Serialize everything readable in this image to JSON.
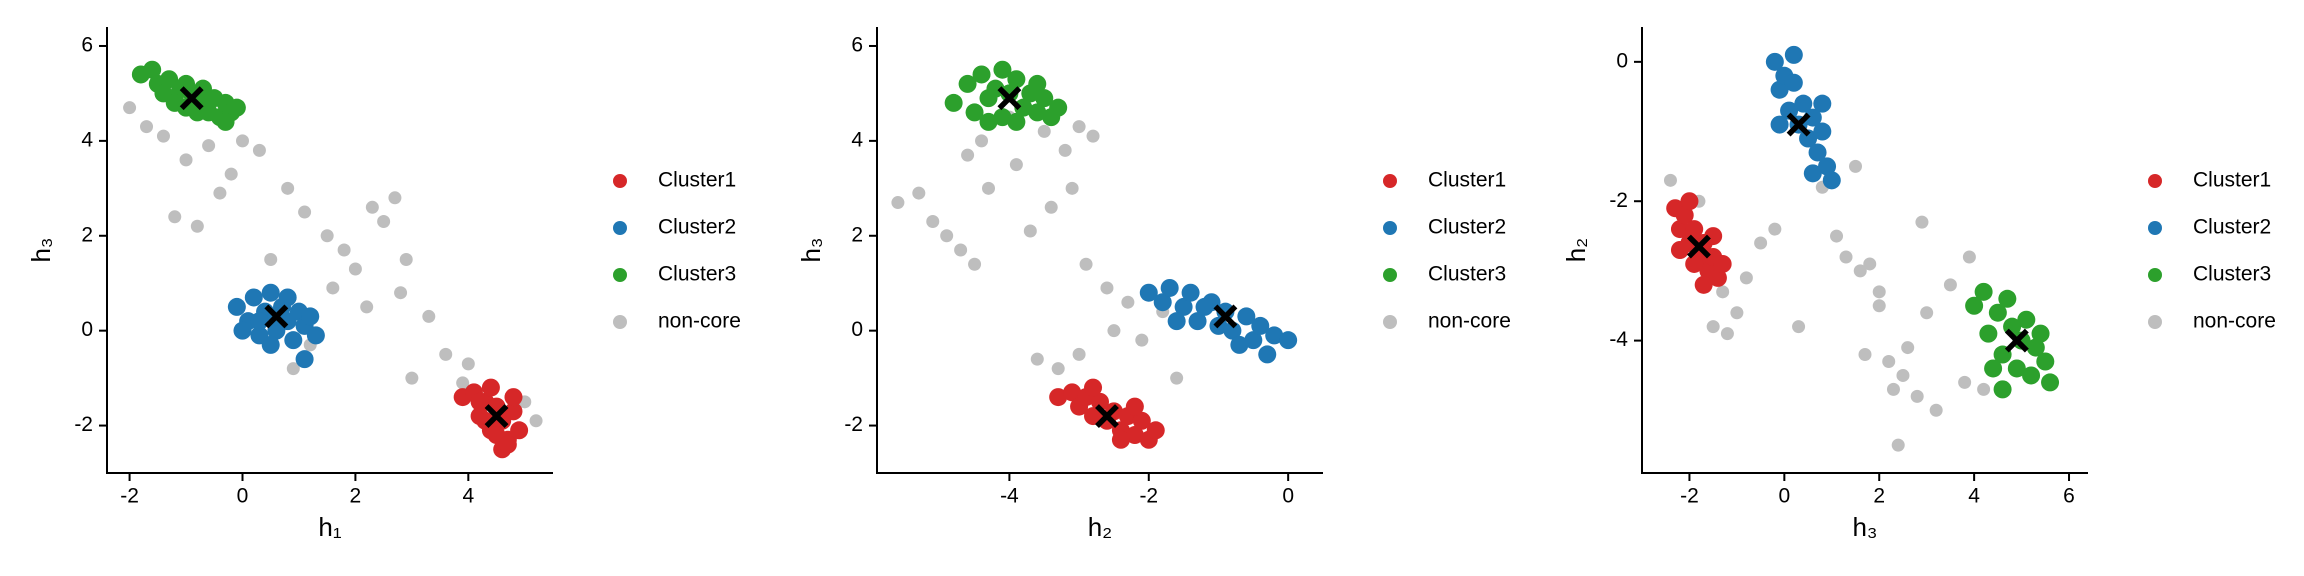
{
  "chart_data": [
    {
      "type": "scatter",
      "xlabel": "h₁",
      "ylabel": "h₃",
      "legend": "right",
      "xlim": [
        -2.4,
        5.5
      ],
      "ylim": [
        -3,
        6.4
      ],
      "xticks": [
        -2,
        0,
        2,
        4
      ],
      "yticks": [
        -2,
        0,
        2,
        4,
        6
      ],
      "series": [
        {
          "name": "Cluster1",
          "color": "#d62728",
          "x": [
            3.9,
            4.1,
            4.2,
            4.3,
            4.4,
            4.5,
            4.6,
            4.7,
            4.8,
            4.9,
            4.2,
            4.6,
            4.4,
            4.8,
            4.5,
            4.3,
            4.7
          ],
          "y": [
            -1.4,
            -1.3,
            -1.8,
            -1.5,
            -2.1,
            -1.6,
            -1.9,
            -2.3,
            -1.7,
            -2.1,
            -1.5,
            -2.5,
            -1.2,
            -1.4,
            -2.2,
            -1.9,
            -2.4
          ]
        },
        {
          "name": "Cluster2",
          "color": "#1f77b4",
          "x": [
            -0.1,
            0.1,
            0.2,
            0.3,
            0.4,
            0.5,
            0.6,
            0.7,
            0.8,
            0.9,
            1.0,
            1.1,
            1.2,
            1.3,
            0.0,
            0.5,
            0.8,
            0.3,
            1.1,
            0.6
          ],
          "y": [
            0.5,
            0.2,
            0.7,
            -0.1,
            0.4,
            0.8,
            0.0,
            0.5,
            0.2,
            -0.2,
            0.4,
            0.1,
            0.3,
            -0.1,
            0.0,
            -0.3,
            0.7,
            0.2,
            -0.6,
            0.3
          ]
        },
        {
          "name": "Cluster3",
          "color": "#2ca02c",
          "x": [
            -1.8,
            -1.6,
            -1.5,
            -1.3,
            -1.2,
            -1.1,
            -1.0,
            -0.9,
            -0.8,
            -0.7,
            -0.6,
            -0.5,
            -0.4,
            -0.3,
            -0.2,
            -1.4,
            -1.0,
            -0.8,
            -0.6,
            -1.2,
            -0.3,
            -0.1
          ],
          "y": [
            5.4,
            5.5,
            5.2,
            5.3,
            4.9,
            5.1,
            4.7,
            5.0,
            4.8,
            5.1,
            4.6,
            4.9,
            4.5,
            4.8,
            4.6,
            5.0,
            5.2,
            4.6,
            4.9,
            4.8,
            4.4,
            4.7
          ]
        },
        {
          "name": "non-core",
          "color": "#bebebe",
          "x": [
            -2.0,
            -1.7,
            -1.4,
            -1.0,
            -0.6,
            -0.2,
            0.3,
            0.8,
            1.1,
            -1.2,
            -0.8,
            0.0,
            0.5,
            1.5,
            1.8,
            2.0,
            2.3,
            2.5,
            2.7,
            2.9,
            2.2,
            1.6,
            1.2,
            3.3,
            3.6,
            4.0,
            3.9,
            5.0,
            5.2,
            0.9,
            -0.4,
            3.0,
            2.8
          ],
          "y": [
            4.7,
            4.3,
            4.1,
            3.6,
            3.9,
            3.3,
            3.8,
            3.0,
            2.5,
            2.4,
            2.2,
            4.0,
            1.5,
            2.0,
            1.7,
            1.3,
            2.6,
            2.3,
            2.8,
            1.5,
            0.5,
            0.9,
            -0.3,
            0.3,
            -0.5,
            -0.7,
            -1.1,
            -1.5,
            -1.9,
            -0.8,
            2.9,
            -1.0,
            0.8
          ]
        }
      ],
      "centers": {
        "x": [
          4.5,
          0.6,
          -0.9
        ],
        "y": [
          -1.8,
          0.3,
          4.9
        ]
      }
    },
    {
      "type": "scatter",
      "xlabel": "h₂",
      "ylabel": "h₃",
      "legend": "right",
      "xlim": [
        -5.9,
        0.5
      ],
      "ylim": [
        -3,
        6.4
      ],
      "xticks": [
        -4,
        -2,
        0
      ],
      "yticks": [
        -2,
        0,
        2,
        4,
        6
      ],
      "series": [
        {
          "name": "Cluster1",
          "color": "#d62728",
          "x": [
            -3.3,
            -3.1,
            -3.0,
            -2.9,
            -2.8,
            -2.7,
            -2.6,
            -2.5,
            -2.4,
            -2.3,
            -2.2,
            -2.1,
            -2.0,
            -1.9,
            -2.8,
            -2.4,
            -2.2
          ],
          "y": [
            -1.4,
            -1.3,
            -1.6,
            -1.4,
            -1.8,
            -1.5,
            -1.9,
            -1.7,
            -2.1,
            -1.8,
            -2.2,
            -1.9,
            -2.3,
            -2.1,
            -1.2,
            -2.3,
            -1.6
          ]
        },
        {
          "name": "Cluster2",
          "color": "#1f77b4",
          "x": [
            -2.0,
            -1.8,
            -1.7,
            -1.5,
            -1.4,
            -1.3,
            -1.1,
            -1.0,
            -0.9,
            -0.8,
            -0.6,
            -0.5,
            -0.4,
            -0.2,
            0.0,
            -1.2,
            -0.7,
            -1.6,
            -0.3
          ],
          "y": [
            0.8,
            0.6,
            0.9,
            0.5,
            0.8,
            0.2,
            0.6,
            0.1,
            0.4,
            0.0,
            0.3,
            -0.2,
            0.1,
            -0.1,
            -0.2,
            0.5,
            -0.3,
            0.2,
            -0.5
          ]
        },
        {
          "name": "Cluster3",
          "color": "#2ca02c",
          "x": [
            -4.8,
            -4.6,
            -4.5,
            -4.4,
            -4.3,
            -4.2,
            -4.1,
            -4.0,
            -3.9,
            -3.8,
            -3.7,
            -3.6,
            -3.5,
            -3.4,
            -3.3,
            -4.3,
            -3.9,
            -4.1,
            -3.6
          ],
          "y": [
            4.8,
            5.2,
            4.6,
            5.4,
            4.9,
            5.1,
            4.5,
            5.0,
            5.3,
            4.7,
            5.0,
            4.6,
            4.9,
            4.5,
            4.7,
            4.4,
            4.4,
            5.5,
            5.2
          ]
        },
        {
          "name": "non-core",
          "color": "#bebebe",
          "x": [
            -5.6,
            -5.3,
            -5.1,
            -4.9,
            -4.7,
            -4.5,
            -4.3,
            -4.4,
            -3.9,
            -3.5,
            -3.2,
            -3.0,
            -2.8,
            -3.4,
            -3.7,
            -2.9,
            -2.6,
            -2.3,
            -2.0,
            -1.8,
            -2.5,
            -3.6,
            -3.3,
            -3.0,
            -2.1,
            -1.6,
            -2.4,
            -4.6,
            -4.0,
            -3.1
          ],
          "y": [
            2.7,
            2.9,
            2.3,
            2.0,
            1.7,
            1.4,
            3.0,
            4.0,
            3.5,
            4.2,
            3.8,
            4.3,
            4.1,
            2.6,
            2.1,
            1.4,
            0.9,
            0.6,
            0.8,
            0.4,
            0.0,
            -0.6,
            -0.8,
            -0.5,
            -0.2,
            -1.0,
            -2.2,
            3.7,
            4.5,
            3.0
          ]
        }
      ],
      "centers": {
        "x": [
          -2.6,
          -0.9,
          -4.0
        ],
        "y": [
          -1.8,
          0.3,
          4.9
        ]
      }
    },
    {
      "type": "scatter",
      "xlabel": "h₃",
      "ylabel": "h₂",
      "legend": "right",
      "xlim": [
        -3,
        6.4
      ],
      "ylim": [
        -5.9,
        0.5
      ],
      "xticks": [
        -2,
        0,
        2,
        4,
        6
      ],
      "yticks": [
        -4,
        -2,
        0
      ],
      "series": [
        {
          "name": "Cluster1",
          "color": "#d62728",
          "x": [
            -2.3,
            -2.2,
            -2.1,
            -2.0,
            -1.9,
            -1.8,
            -1.7,
            -1.6,
            -1.5,
            -1.4,
            -1.3,
            -2.0,
            -1.7,
            -1.5,
            -2.2,
            -1.9
          ],
          "y": [
            -2.1,
            -2.4,
            -2.2,
            -2.6,
            -2.4,
            -2.8,
            -2.6,
            -3.0,
            -2.8,
            -3.1,
            -2.9,
            -2.0,
            -3.2,
            -2.5,
            -2.7,
            -2.9
          ]
        },
        {
          "name": "Cluster2",
          "color": "#1f77b4",
          "x": [
            -0.2,
            -0.1,
            0.0,
            0.1,
            0.2,
            0.3,
            0.4,
            0.5,
            0.6,
            0.7,
            0.8,
            0.9,
            1.0,
            0.2,
            0.6,
            -0.1,
            0.8
          ],
          "y": [
            0.0,
            -0.4,
            -0.2,
            -0.7,
            -0.3,
            -0.9,
            -0.6,
            -1.1,
            -0.8,
            -1.3,
            -1.0,
            -1.5,
            -1.7,
            0.1,
            -1.6,
            -0.9,
            -0.6
          ]
        },
        {
          "name": "Cluster3",
          "color": "#2ca02c",
          "x": [
            4.0,
            4.2,
            4.3,
            4.5,
            4.6,
            4.8,
            4.9,
            5.0,
            5.2,
            5.3,
            5.5,
            5.6,
            4.4,
            4.7,
            5.1,
            4.6,
            5.4
          ],
          "y": [
            -3.5,
            -3.3,
            -3.9,
            -3.6,
            -4.2,
            -3.8,
            -4.4,
            -4.0,
            -4.5,
            -4.1,
            -4.3,
            -4.6,
            -4.4,
            -3.4,
            -3.7,
            -4.7,
            -3.9
          ]
        },
        {
          "name": "non-core",
          "color": "#bebebe",
          "x": [
            -2.4,
            -1.8,
            -1.3,
            -1.0,
            -0.8,
            -1.2,
            -1.5,
            -0.5,
            0.3,
            1.1,
            1.5,
            1.6,
            2.0,
            2.2,
            2.5,
            2.8,
            3.2,
            3.5,
            3.0,
            2.6,
            2.3,
            2.0,
            1.8,
            2.4,
            3.8,
            4.2,
            -0.2,
            0.8,
            1.3,
            2.9,
            3.9,
            1.7
          ],
          "y": [
            -1.7,
            -2.0,
            -3.3,
            -3.6,
            -3.1,
            -3.9,
            -3.8,
            -2.6,
            -3.8,
            -2.5,
            -1.5,
            -3.0,
            -3.3,
            -4.3,
            -4.5,
            -4.8,
            -5.0,
            -3.2,
            -3.6,
            -4.1,
            -4.7,
            -3.5,
            -2.9,
            -5.5,
            -4.6,
            -4.7,
            -2.4,
            -1.8,
            -2.8,
            -2.3,
            -2.8,
            -4.2
          ]
        }
      ],
      "centers": {
        "x": [
          -1.8,
          0.3,
          4.9
        ],
        "y": [
          -2.65,
          -0.9,
          -4.0
        ]
      }
    }
  ]
}
